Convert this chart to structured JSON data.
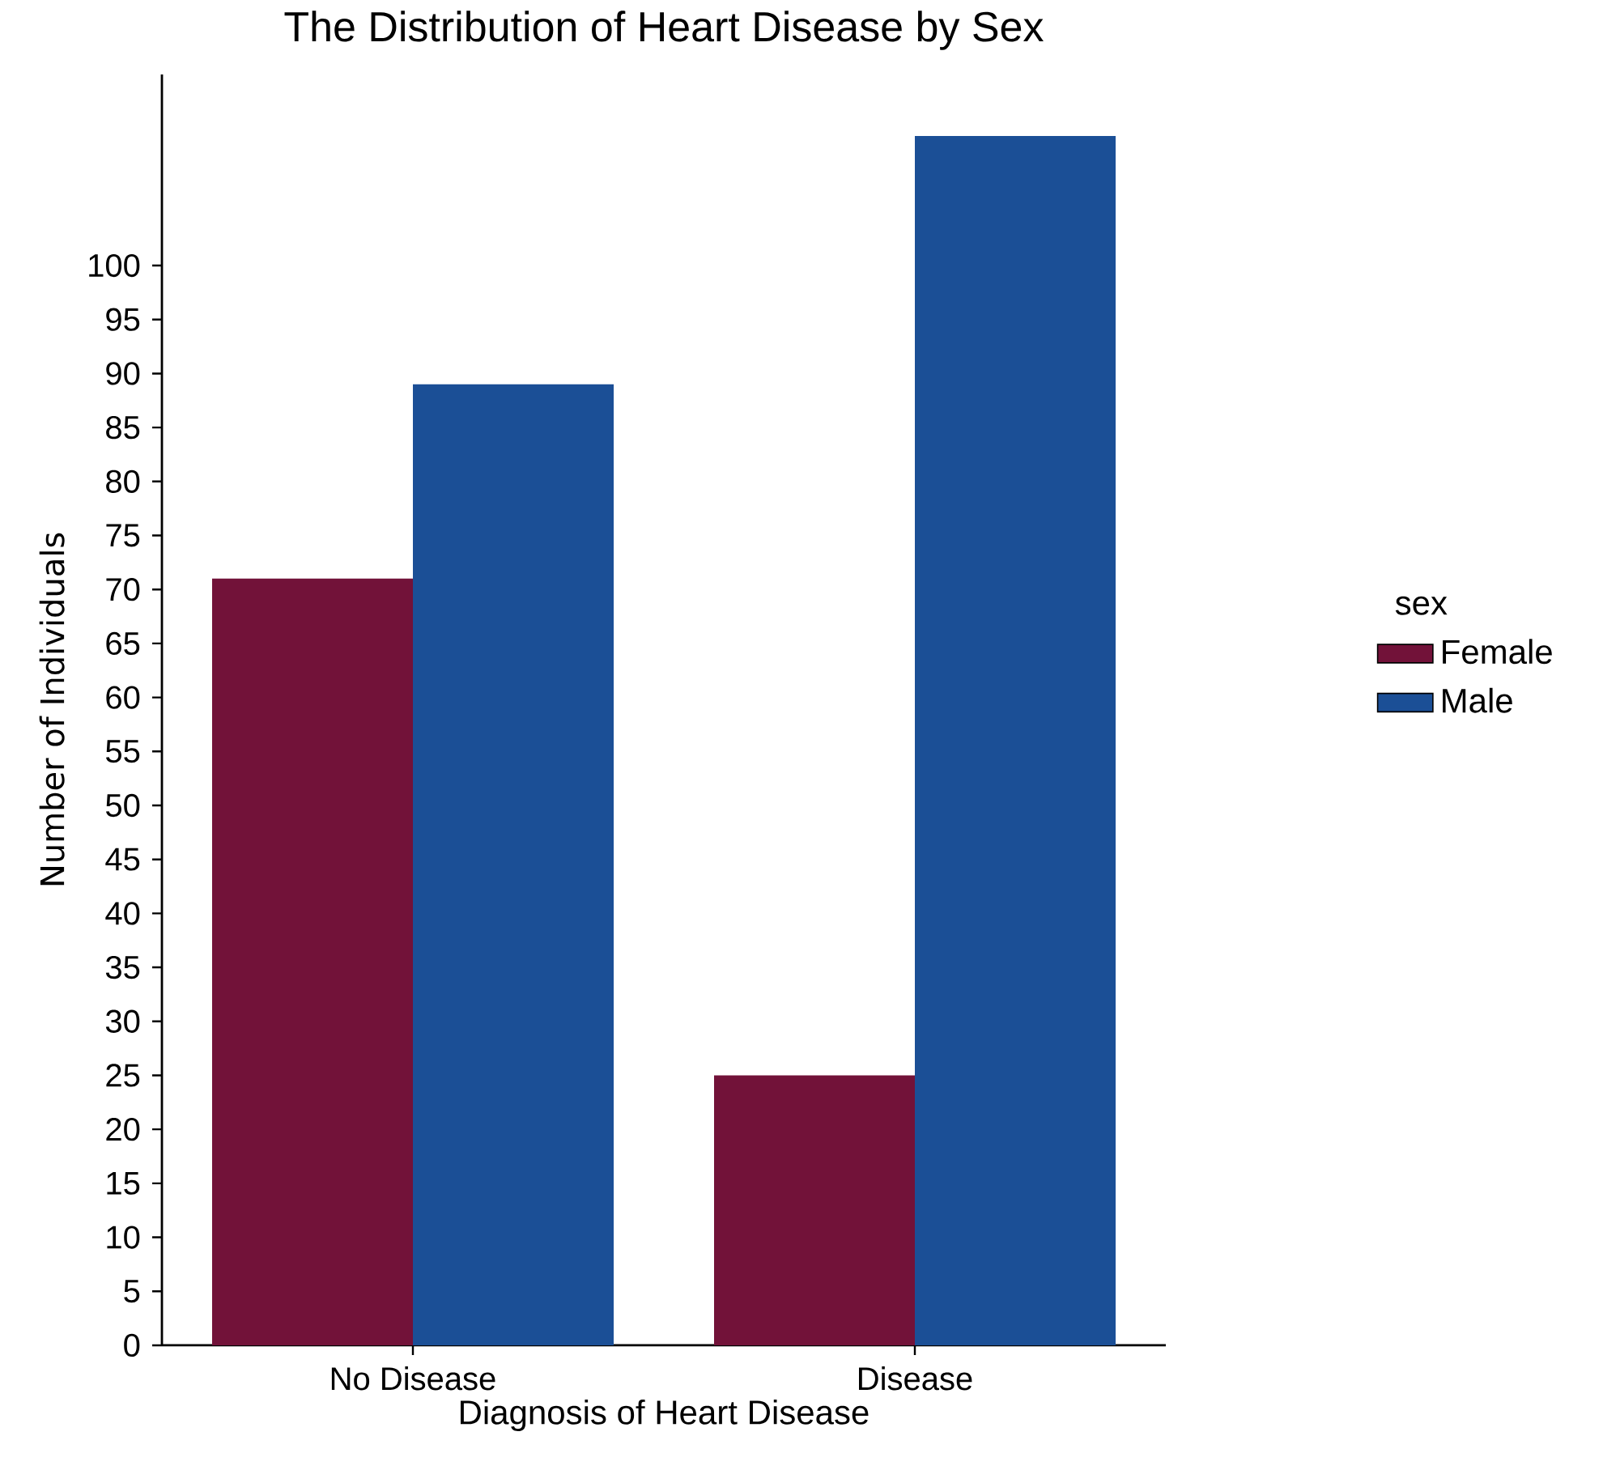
{
  "chart_data": {
    "type": "bar",
    "title": "The Distribution of Heart Disease by Sex",
    "xlabel": "Diagnosis of Heart Disease",
    "ylabel": "Number of Individuals",
    "legend_title": "sex",
    "categories": [
      "No Disease",
      "Disease"
    ],
    "series": [
      {
        "name": "Female",
        "color": "#721239",
        "values": [
          71,
          25
        ]
      },
      {
        "name": "Male",
        "color": "#1b4f96",
        "values": [
          89,
          112
        ]
      }
    ],
    "ylim": [
      0,
      117.7
    ],
    "yticks": [
      0,
      5,
      10,
      15,
      20,
      25,
      30,
      35,
      40,
      45,
      50,
      55,
      60,
      65,
      70,
      75,
      80,
      85,
      90,
      95,
      100
    ],
    "grid": false,
    "legend": "right"
  }
}
